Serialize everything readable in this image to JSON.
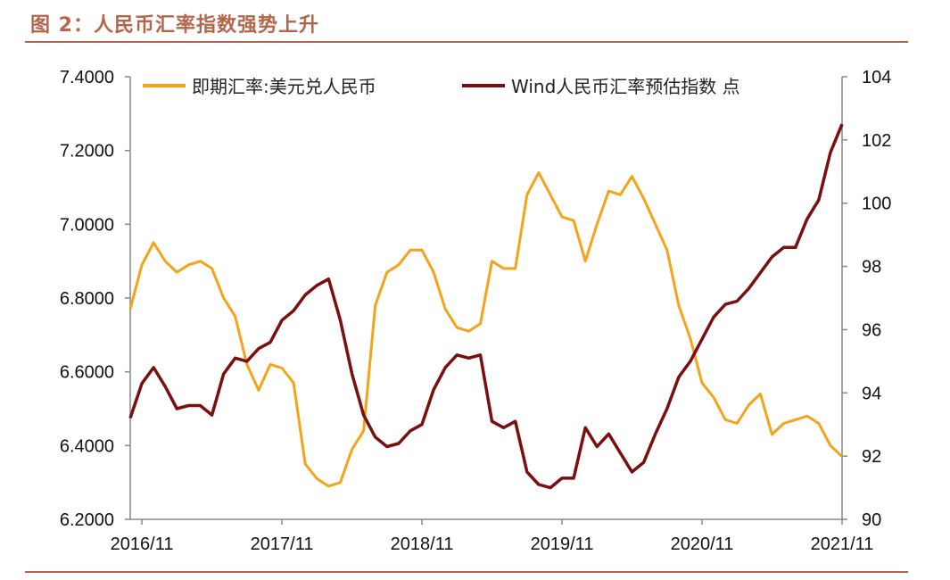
{
  "figure_title": "图 2：人民币汇率指数强势上升",
  "colors": {
    "title": "#b5664a",
    "rule": "#b5664a",
    "spot": "#f5a31a",
    "index": "#7a0f0f",
    "axis": "#888888"
  },
  "chart_data": {
    "type": "line",
    "title": "",
    "x_tick_labels": [
      "2016/11",
      "2017/11",
      "2018/11",
      "2019/11",
      "2020/11",
      "2021/11"
    ],
    "x_range": [
      "2016-10",
      "2021-11"
    ],
    "y_left": {
      "ticks": [
        "7.4000",
        "7.2000",
        "7.0000",
        "6.8000",
        "6.6000",
        "6.4000",
        "6.2000"
      ],
      "ylim": [
        6.2,
        7.4
      ]
    },
    "y_right": {
      "ticks": [
        "104",
        "102",
        "100",
        "98",
        "96",
        "94",
        "92",
        "90"
      ],
      "ylim": [
        90,
        104
      ]
    },
    "grid": false,
    "legend_position": "top",
    "series": [
      {
        "name": "即期汇率:美元兑人民币",
        "axis": "left",
        "x": [
          "2016-10",
          "2016-11",
          "2016-12",
          "2017-01",
          "2017-02",
          "2017-03",
          "2017-04",
          "2017-05",
          "2017-06",
          "2017-07",
          "2017-08",
          "2017-09",
          "2017-10",
          "2017-11",
          "2017-12",
          "2018-01",
          "2018-02",
          "2018-03",
          "2018-04",
          "2018-05",
          "2018-06",
          "2018-07",
          "2018-08",
          "2018-09",
          "2018-10",
          "2018-11",
          "2018-12",
          "2019-01",
          "2019-02",
          "2019-03",
          "2019-04",
          "2019-05",
          "2019-06",
          "2019-07",
          "2019-08",
          "2019-09",
          "2019-10",
          "2019-11",
          "2019-12",
          "2020-01",
          "2020-02",
          "2020-03",
          "2020-04",
          "2020-05",
          "2020-06",
          "2020-07",
          "2020-08",
          "2020-09",
          "2020-10",
          "2020-11",
          "2020-12",
          "2021-01",
          "2021-02",
          "2021-03",
          "2021-04",
          "2021-05",
          "2021-06",
          "2021-07",
          "2021-08",
          "2021-09",
          "2021-10",
          "2021-11"
        ],
        "values": [
          6.77,
          6.89,
          6.95,
          6.9,
          6.87,
          6.89,
          6.9,
          6.88,
          6.8,
          6.75,
          6.62,
          6.55,
          6.62,
          6.61,
          6.57,
          6.35,
          6.31,
          6.29,
          6.3,
          6.39,
          6.44,
          6.78,
          6.87,
          6.89,
          6.93,
          6.93,
          6.87,
          6.77,
          6.72,
          6.71,
          6.73,
          6.9,
          6.88,
          6.88,
          7.08,
          7.14,
          7.08,
          7.02,
          7.01,
          6.9,
          7.0,
          7.09,
          7.08,
          7.13,
          7.07,
          7.0,
          6.93,
          6.78,
          6.69,
          6.57,
          6.53,
          6.47,
          6.46,
          6.51,
          6.54,
          6.43,
          6.46,
          6.47,
          6.48,
          6.46,
          6.4,
          6.37
        ]
      },
      {
        "name": "Wind人民币汇率预估指数 点",
        "axis": "right",
        "x": [
          "2016-10",
          "2016-11",
          "2016-12",
          "2017-01",
          "2017-02",
          "2017-03",
          "2017-04",
          "2017-05",
          "2017-06",
          "2017-07",
          "2017-08",
          "2017-09",
          "2017-10",
          "2017-11",
          "2017-12",
          "2018-01",
          "2018-02",
          "2018-03",
          "2018-04",
          "2018-05",
          "2018-06",
          "2018-07",
          "2018-08",
          "2018-09",
          "2018-10",
          "2018-11",
          "2018-12",
          "2019-01",
          "2019-02",
          "2019-03",
          "2019-04",
          "2019-05",
          "2019-06",
          "2019-07",
          "2019-08",
          "2019-09",
          "2019-10",
          "2019-11",
          "2019-12",
          "2020-01",
          "2020-02",
          "2020-03",
          "2020-04",
          "2020-05",
          "2020-06",
          "2020-07",
          "2020-08",
          "2020-09",
          "2020-10",
          "2020-11",
          "2020-12",
          "2021-01",
          "2021-02",
          "2021-03",
          "2021-04",
          "2021-05",
          "2021-06",
          "2021-07",
          "2021-08",
          "2021-09",
          "2021-10",
          "2021-11"
        ],
        "values": [
          93.2,
          94.3,
          94.8,
          94.2,
          93.5,
          93.6,
          93.6,
          93.3,
          94.6,
          95.1,
          95.0,
          95.4,
          95.6,
          96.3,
          96.6,
          97.1,
          97.4,
          97.6,
          96.3,
          94.6,
          93.3,
          92.6,
          92.3,
          92.4,
          92.8,
          93.0,
          94.1,
          94.8,
          95.2,
          95.1,
          95.2,
          93.1,
          92.9,
          93.1,
          91.5,
          91.1,
          91.0,
          91.3,
          91.3,
          92.9,
          92.3,
          92.7,
          92.1,
          91.5,
          91.8,
          92.7,
          93.5,
          94.5,
          95.0,
          95.7,
          96.4,
          96.8,
          96.9,
          97.3,
          97.8,
          98.3,
          98.6,
          98.6,
          99.5,
          100.1,
          101.6,
          102.5
        ]
      }
    ]
  }
}
